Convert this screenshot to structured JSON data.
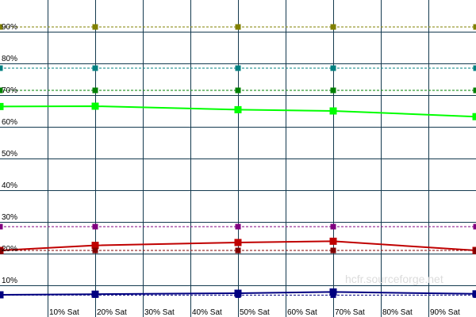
{
  "chart_data": {
    "type": "line",
    "x": [
      "",
      "10% Sat",
      "20% Sat",
      "30% Sat",
      "40% Sat",
      "50% Sat",
      "60% Sat",
      "70% Sat",
      "80% Sat",
      "90% Sat",
      ""
    ],
    "y_ticks": [
      "10%",
      "20%",
      "30%",
      "40%",
      "50%",
      "60%",
      "70%",
      "80%",
      "90%"
    ],
    "ylim": [
      0,
      100
    ],
    "grid": true,
    "watermark": "hcfr.sourceforge.net",
    "colors": {
      "background": "#ffffff",
      "grid": "#143a4f",
      "olive": "#808000",
      "teal": "#008080",
      "green_dark": "#008000",
      "green_bright": "#00ff00",
      "purple": "#800080",
      "red": "#c00000",
      "red_dark": "#800000",
      "blue": "#000080"
    },
    "series": [
      {
        "color": "#808000",
        "style": "dashed",
        "values": [
          91.5,
          null,
          91.5,
          null,
          null,
          91.5,
          null,
          91.5,
          null,
          null,
          91.5
        ]
      },
      {
        "color": "#008080",
        "style": "dashed",
        "values": [
          78.5,
          null,
          78.5,
          null,
          null,
          78.5,
          null,
          78.5,
          null,
          null,
          78.5
        ]
      },
      {
        "color": "#008000",
        "style": "dashed",
        "values": [
          71.5,
          null,
          71.5,
          null,
          null,
          71.5,
          null,
          71.5,
          null,
          null,
          71.5
        ]
      },
      {
        "color": "#00ff00",
        "style": "solid",
        "values": [
          66.4,
          null,
          66.5,
          null,
          null,
          65.4,
          null,
          65.0,
          null,
          null,
          63.2
        ]
      },
      {
        "color": "#800080",
        "style": "dashed",
        "values": [
          28.5,
          null,
          28.5,
          null,
          null,
          28.5,
          null,
          28.5,
          null,
          null,
          28.5
        ]
      },
      {
        "color": "#c00000",
        "style": "solid",
        "values": [
          21.0,
          null,
          22.6,
          null,
          null,
          23.5,
          null,
          23.9,
          null,
          null,
          21.0
        ]
      },
      {
        "color": "#800000",
        "style": "dashed",
        "values": [
          21.0,
          null,
          21.0,
          null,
          null,
          21.0,
          null,
          21.0,
          null,
          null,
          21.0
        ]
      },
      {
        "color": "#000080",
        "style": "solid",
        "values": [
          7.0,
          null,
          7.2,
          null,
          null,
          7.5,
          null,
          7.9,
          null,
          null,
          7.3
        ]
      },
      {
        "color": "#000080",
        "style": "dashed",
        "values": [
          6.9,
          null,
          6.9,
          null,
          null,
          6.9,
          null,
          6.9,
          null,
          null,
          6.9
        ]
      }
    ]
  }
}
